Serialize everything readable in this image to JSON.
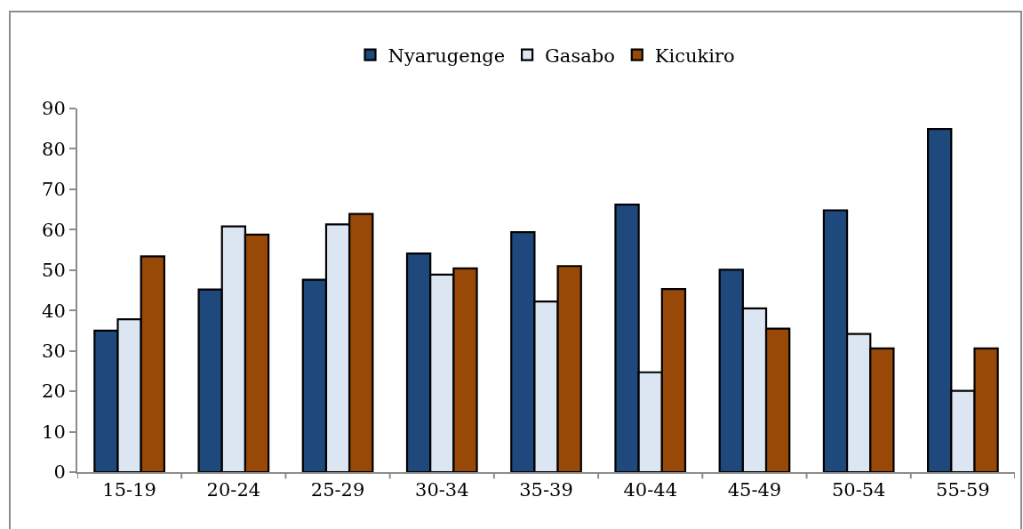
{
  "chart_data": {
    "type": "bar",
    "categories": [
      "15-19",
      "20-24",
      "25-29",
      "30-34",
      "35-39",
      "40-44",
      "45-49",
      "50-54",
      "55-59"
    ],
    "series": [
      {
        "name": "Nyarugenge",
        "color": "#1f497d",
        "values": [
          35,
          45.2,
          47.6,
          54.1,
          59.4,
          66.2,
          50.1,
          64.8,
          84.9
        ]
      },
      {
        "name": "Gasabo",
        "color": "#dce6f2",
        "values": [
          37.8,
          60.8,
          61.3,
          48.9,
          42.2,
          24.7,
          40.5,
          34.2,
          20.1
        ]
      },
      {
        "name": "Kicukiro",
        "color": "#984807",
        "values": [
          53.4,
          58.8,
          63.9,
          50.4,
          51.0,
          45.3,
          35.5,
          30.6,
          30.6
        ]
      }
    ],
    "ylim": [
      0,
      90
    ],
    "yticks": [
      0,
      10,
      20,
      30,
      40,
      50,
      60,
      70,
      80,
      90
    ],
    "grid": false,
    "legend": "top"
  }
}
